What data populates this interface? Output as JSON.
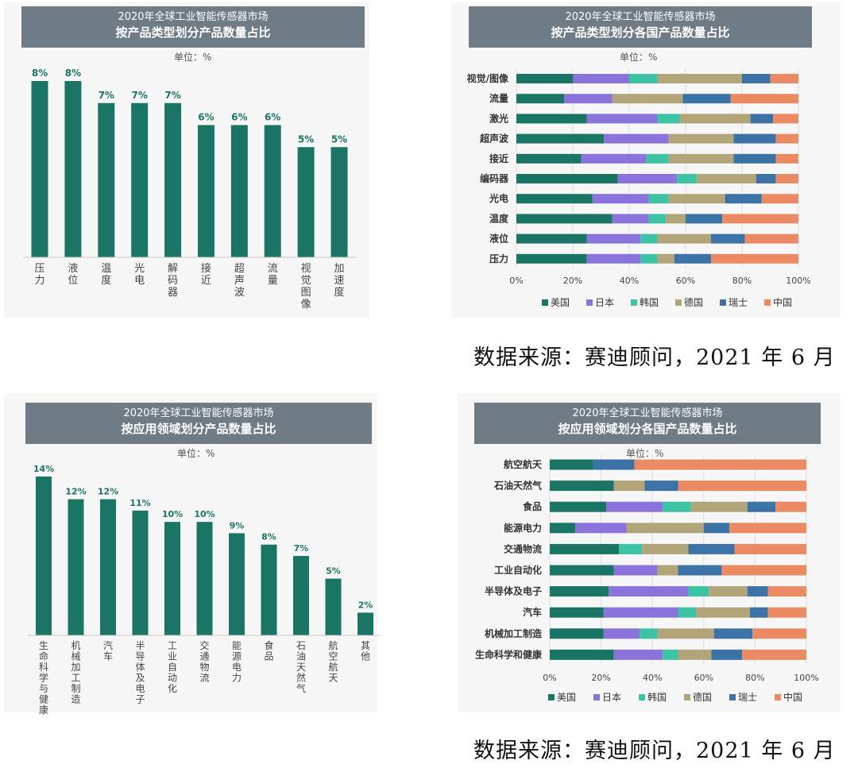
{
  "colors": {
    "bar": "#1a7565",
    "title_bg": "#6f7b85",
    "countries": [
      "#1a7565",
      "#8a74dc",
      "#3cc4a4",
      "#b2a57a",
      "#3b73a6",
      "#ec8a64"
    ]
  },
  "chart_data": [
    {
      "type": "bar",
      "title": "2020年全球工业智能传感器市场",
      "subtitle": "按产品类型划分产品数量占比",
      "unit": "单位：%",
      "categories": [
        "压力",
        "液位",
        "温度",
        "光电",
        "解码器",
        "接近",
        "超声波",
        "流量",
        "视觉图像",
        "加速度"
      ],
      "values": [
        8,
        8,
        7,
        7,
        7,
        6,
        6,
        6,
        5,
        5
      ],
      "labels": [
        "8%",
        "8%",
        "7%",
        "7%",
        "7%",
        "6%",
        "6%",
        "6%",
        "5%",
        "5%"
      ]
    },
    {
      "type": "bar",
      "stacked": true,
      "orientation": "horizontal",
      "title": "2020年全球工业智能传感器市场",
      "subtitle": "按产品类型划分各国产品数量占比",
      "unit": "单位：%",
      "categories": [
        "视觉/图像",
        "流量",
        "激光",
        "超声波",
        "接近",
        "编码器",
        "光电",
        "温度",
        "液位",
        "压力"
      ],
      "xticks": [
        "0%",
        "20%",
        "40%",
        "60%",
        "80%",
        "100%"
      ],
      "xlim": [
        0,
        100
      ],
      "legend_position": "bottom",
      "series": [
        {
          "name": "美国",
          "values": [
            20,
            17,
            25,
            31,
            23,
            36,
            27,
            34,
            25,
            25
          ]
        },
        {
          "name": "日本",
          "values": [
            20,
            17,
            25,
            23,
            23,
            21,
            20,
            13,
            19,
            19
          ]
        },
        {
          "name": "韩国",
          "values": [
            10,
            0,
            8,
            0,
            8,
            7,
            7,
            6,
            6,
            6
          ]
        },
        {
          "name": "德国",
          "values": [
            30,
            25,
            25,
            23,
            23,
            21,
            20,
            7,
            19,
            6
          ]
        },
        {
          "name": "瑞士",
          "values": [
            10,
            17,
            8,
            15,
            15,
            7,
            13,
            13,
            12,
            13
          ]
        },
        {
          "name": "中国",
          "values": [
            10,
            24,
            9,
            8,
            8,
            8,
            13,
            27,
            19,
            31
          ]
        }
      ]
    },
    {
      "type": "bar",
      "title": "2020年全球工业智能传感器市场",
      "subtitle": "按应用领域划分产品数量占比",
      "unit": "单位：%",
      "categories": [
        "生命科学与健康",
        "机械加工制造",
        "汽车",
        "半导体及电子",
        "工业自动化",
        "交通物流",
        "能源电力",
        "食品",
        "石油天然气",
        "航空航天",
        "其他"
      ],
      "values": [
        14,
        12,
        12,
        11,
        10,
        10,
        9,
        8,
        7,
        5,
        2
      ],
      "labels": [
        "14%",
        "12%",
        "12%",
        "11%",
        "10%",
        "10%",
        "9%",
        "8%",
        "7%",
        "5%",
        "2%"
      ]
    },
    {
      "type": "bar",
      "stacked": true,
      "orientation": "horizontal",
      "title": "2020年全球工业智能传感器市场",
      "subtitle": "按应用领域划分各国产品数量占比",
      "unit": "单位：%",
      "categories": [
        "航空航天",
        "石油天然气",
        "食品",
        "能源电力",
        "交通物流",
        "工业自动化",
        "半导体及电子",
        "汽车",
        "机械加工制造",
        "生命科学和健康"
      ],
      "xticks": [
        "0%",
        "20%",
        "40%",
        "60%",
        "80%",
        "100%"
      ],
      "xlim": [
        0,
        100
      ],
      "legend_position": "bottom",
      "series": [
        {
          "name": "美国",
          "values": [
            17,
            25,
            22,
            10,
            27,
            25,
            23,
            21,
            21,
            25
          ]
        },
        {
          "name": "日本",
          "values": [
            0,
            0,
            22,
            20,
            0,
            17,
            31,
            29,
            14,
            19
          ]
        },
        {
          "name": "韩国",
          "values": [
            0,
            0,
            11,
            0,
            9,
            0,
            8,
            7,
            7,
            6
          ]
        },
        {
          "name": "德国",
          "values": [
            0,
            12,
            22,
            30,
            18,
            8,
            15,
            21,
            22,
            13
          ]
        },
        {
          "name": "瑞士",
          "values": [
            16,
            13,
            11,
            10,
            18,
            17,
            8,
            7,
            15,
            12
          ]
        },
        {
          "name": "中国",
          "values": [
            67,
            50,
            12,
            30,
            28,
            33,
            15,
            15,
            21,
            25
          ]
        }
      ]
    }
  ],
  "footer": {
    "source_1": "数据来源：赛迪顾问，2021 年 6 月",
    "source_2": "数据来源：赛迪顾问，2021 年 6 月"
  }
}
